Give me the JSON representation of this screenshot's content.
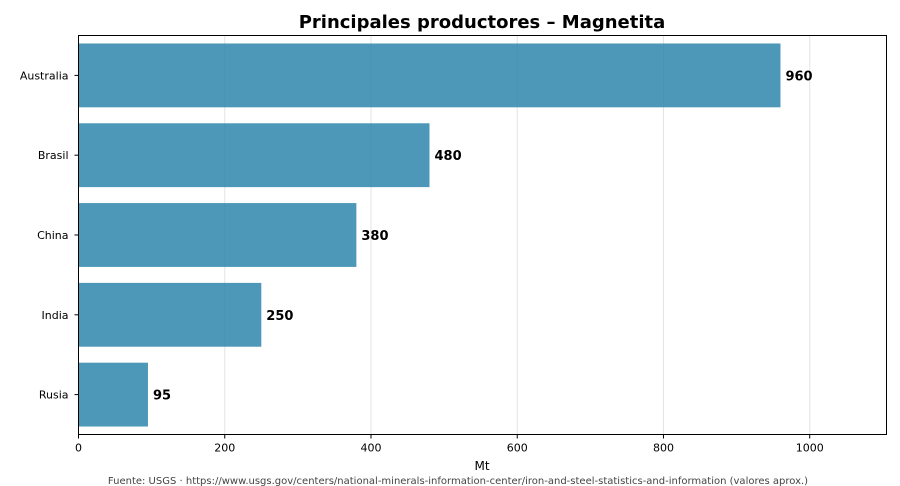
{
  "chart_data": {
    "type": "bar",
    "orientation": "horizontal",
    "title": "Principales productores – Magnetita",
    "xlabel": "Mt",
    "ylabel": "",
    "categories": [
      "Australia",
      "Brasil",
      "China",
      "India",
      "Rusia"
    ],
    "values": [
      960,
      480,
      380,
      250,
      95
    ],
    "value_labels": [
      "960",
      "480",
      "380",
      "250",
      "95"
    ],
    "xlim": [
      0,
      1105
    ],
    "xticks": [
      0,
      200,
      400,
      600,
      800,
      1000
    ],
    "xtick_labels": [
      "0",
      "200",
      "400",
      "600",
      "800",
      "1000"
    ],
    "grid": "vertical",
    "bar_color": "#2e86ab",
    "footnote": "Fuente: USGS · https://www.usgs.gov/centers/national-minerals-information-center/iron-and-steel-statistics-and-information (valores aprox.)"
  }
}
